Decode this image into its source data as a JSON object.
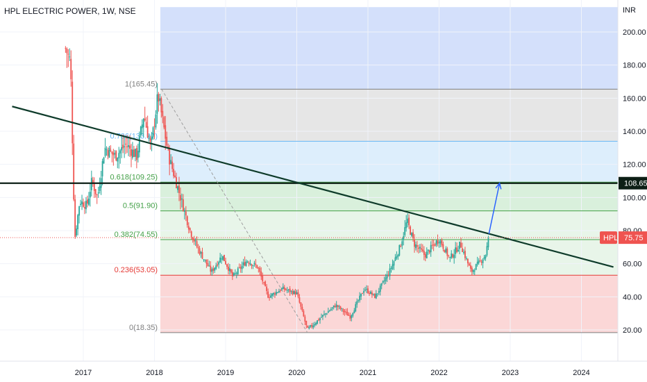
{
  "header": {
    "title": "HPL ELECTRIC POWER, 1W, NSE"
  },
  "colors": {
    "fib_top_zone": "#d4e0fb",
    "fib_gray_zone": "#e6e6e6",
    "fib_light_blue_zone": "#ddeefc",
    "fib_green_zone": "#d9f0dc",
    "fib_pale_green_zone": "#e8f5e9",
    "fib_red_zone": "#fbd7d7",
    "trend_line": "#0e3b2a",
    "up_candle": "#26a69a",
    "down_candle": "#ef5350",
    "arrow": "#2962ff",
    "price_label_hpl": "#ef5350",
    "price_label_level": "#0d1f16"
  },
  "chart_data": {
    "type": "candlestick",
    "currency_label": "INR",
    "x_ticks": [
      "2017",
      "2018",
      "2019",
      "2020",
      "2021",
      "2022",
      "2023",
      "2024"
    ],
    "y_ticks": [
      "20.00",
      "40.00",
      "60.00",
      "80.00",
      "100.00",
      "120.00",
      "140.00",
      "160.00",
      "180.00",
      "200.00"
    ],
    "ylim": [
      12,
      215
    ],
    "fib_levels": [
      {
        "ratio": "1",
        "value": 165.45,
        "label": "1(165.45)",
        "color": "#7e7e7e"
      },
      {
        "ratio": "0.786",
        "value": 133.97,
        "label": "0.786(133.97)",
        "color": "#64b5f6"
      },
      {
        "ratio": "0.618",
        "value": 109.25,
        "label": "0.618(109.25)",
        "color": "#43a047"
      },
      {
        "ratio": "0.5",
        "value": 91.9,
        "label": "0.5(91.90)",
        "color": "#43a047"
      },
      {
        "ratio": "0.382",
        "value": 74.55,
        "label": "0.382(74.55)",
        "color": "#43a047"
      },
      {
        "ratio": "0.236",
        "value": 53.05,
        "label": "0.236(53.05)",
        "color": "#e53935"
      },
      {
        "ratio": "0",
        "value": 18.35,
        "label": "0(18.35)",
        "color": "#7e7e7e"
      }
    ],
    "horizontal_level": {
      "value": 108.65,
      "label": "108.65"
    },
    "last_price": {
      "symbol": "HPL",
      "value": 75.75,
      "label": "75.75"
    },
    "trend_line": {
      "from": {
        "date": "2016.0",
        "value": 155
      },
      "to": {
        "date": "2024.45",
        "value": 58
      }
    },
    "fib_anchor_line": {
      "from": {
        "date": "2018.1",
        "value": 165.45
      },
      "to": {
        "date": "2020.15",
        "value": 18.35
      }
    },
    "projection_arrow": {
      "from": {
        "date": "2022.7",
        "value": 78
      },
      "to": {
        "date": "2022.85",
        "value": 108.65
      }
    },
    "price_path": [
      [
        "2016.75",
        190
      ],
      [
        "2016.82",
        182
      ],
      [
        "2016.88",
        75
      ],
      [
        "2016.95",
        98
      ],
      [
        "2017.05",
        95
      ],
      [
        "2017.12",
        110
      ],
      [
        "2017.2",
        100
      ],
      [
        "2017.3",
        130
      ],
      [
        "2017.45",
        125
      ],
      [
        "2017.6",
        132
      ],
      [
        "2017.75",
        125
      ],
      [
        "2017.85",
        150
      ],
      [
        "2017.95",
        130
      ],
      [
        "2018.05",
        162
      ],
      [
        "2018.1",
        150
      ],
      [
        "2018.2",
        125
      ],
      [
        "2018.3",
        110
      ],
      [
        "2018.4",
        95
      ],
      [
        "2018.5",
        80
      ],
      [
        "2018.6",
        70
      ],
      [
        "2018.8",
        55
      ],
      [
        "2018.95",
        65
      ],
      [
        "2019.1",
        52
      ],
      [
        "2019.3",
        62
      ],
      [
        "2019.45",
        58
      ],
      [
        "2019.6",
        40
      ],
      [
        "2019.8",
        45
      ],
      [
        "2020.0",
        42
      ],
      [
        "2020.15",
        20
      ],
      [
        "2020.35",
        28
      ],
      [
        "2020.55",
        35
      ],
      [
        "2020.75",
        28
      ],
      [
        "2020.95",
        45
      ],
      [
        "2021.1",
        40
      ],
      [
        "2021.3",
        55
      ],
      [
        "2021.45",
        70
      ],
      [
        "2021.55",
        86
      ],
      [
        "2021.65",
        72
      ],
      [
        "2021.8",
        65
      ],
      [
        "2022.0",
        75
      ],
      [
        "2022.15",
        63
      ],
      [
        "2022.3",
        72
      ],
      [
        "2022.45",
        55
      ],
      [
        "2022.55",
        60
      ],
      [
        "2022.65",
        65
      ],
      [
        "2022.7",
        75.75
      ]
    ]
  }
}
